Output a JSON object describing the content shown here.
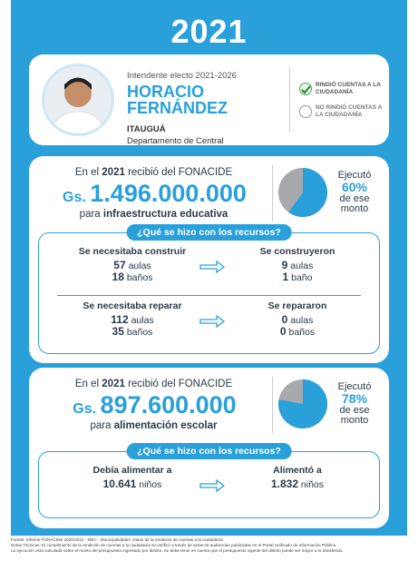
{
  "header": {
    "year": "2021"
  },
  "profile": {
    "role": "Intendente electo 2021-2026",
    "first_name": "HORACIO",
    "last_name": "FERNÁNDEZ",
    "city": "ITAUGUÁ",
    "department": "Departamento de Central",
    "status_yes": "RINDIÓ CUENTAS A LA CIUDADANÍA",
    "status_no": "NO RINDIÓ CUENTAS A LA CIUDADANÍA"
  },
  "sections": [
    {
      "intro_pre": "En el",
      "intro_year": "2021",
      "intro_post": "recibió del FONACIDE",
      "currency": "Gs.",
      "amount": "1.496.000.000",
      "purpose_pre": "para",
      "purpose": "infraestructura educativa",
      "executed_pre": "Ejecutó",
      "executed_value": 60,
      "executed_label": "60%",
      "executed_post": "de ese monto",
      "question": "¿Qué se hizo con los recursos?",
      "rows": [
        {
          "left_title": "Se necesitaba construir",
          "left_items": [
            {
              "n": 57,
              "unit": "aulas"
            },
            {
              "n": 18,
              "unit": "baños"
            }
          ],
          "right_title": "Se construyeron",
          "right_items": [
            {
              "n": 9,
              "unit": "aulas"
            },
            {
              "n": 1,
              "unit": "baño"
            }
          ]
        },
        {
          "left_title": "Se necesitaba reparar",
          "left_items": [
            {
              "n": 112,
              "unit": "aulas"
            },
            {
              "n": 35,
              "unit": "baños"
            }
          ],
          "right_title": "Se repararon",
          "right_items": [
            {
              "n": 0,
              "unit": "aulas"
            },
            {
              "n": 0,
              "unit": "baños"
            }
          ]
        }
      ]
    },
    {
      "intro_pre": "En el",
      "intro_year": "2021",
      "intro_post": "recibió del FONACIDE",
      "currency": "Gs.",
      "amount": "897.600.000",
      "purpose_pre": "para",
      "purpose": "alimentación escolar",
      "executed_pre": "Ejecutó",
      "executed_value": 78,
      "executed_label": "78%",
      "executed_post": "de ese monto",
      "question": "¿Qué se hizo con los recursos?",
      "rows": [
        {
          "left_title": "Debía alimentar a",
          "left_items": [
            {
              "n": "10.641",
              "unit": "niños"
            }
          ],
          "right_title": "Alimentó a",
          "right_items": [
            {
              "n": "1.832",
              "unit": "niños"
            }
          ]
        }
      ]
    }
  ],
  "footer": {
    "source": "Fuente: Informe FONACIDE 2020/2021 - MEC - Municipalidades. Datos de la rendición de cuentas a la ciudadanía.",
    "note": "Notas Técnicas: El cumplimiento de la rendición de cuentas a la ciudadanía se verificó a través de actas de audiencias publicadas en el Portal Unificado de Información Pública.",
    "note2": "La ejecución está calculada sobre el monto del presupuesto ingresado por distrito. Se debe tener en cuenta que el presupuesto vigente del distrito puede ser mayor a lo transferido."
  }
}
